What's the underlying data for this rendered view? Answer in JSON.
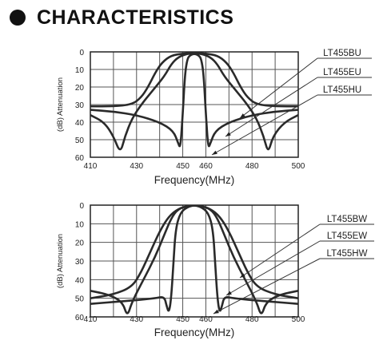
{
  "header": {
    "title": "CHARACTERISTICS"
  },
  "chart_data": [
    {
      "type": "line",
      "xlabel": "Frequency(MHz)",
      "ylabel": "(dB) Attenuation",
      "xlim": [
        410,
        500
      ],
      "ylim": [
        0,
        60
      ],
      "y_inverted": true,
      "grid": true,
      "x_ticks": [
        "410",
        "430",
        "450",
        "460",
        "480",
        "500"
      ],
      "x_tick_values": [
        410,
        430,
        450,
        460,
        480,
        500
      ],
      "y_ticks": [
        "0",
        "10",
        "20",
        "30",
        "40",
        "50",
        "60"
      ],
      "series": [
        {
          "name": "LT455BU",
          "points": [
            [
              410,
              31
            ],
            [
              420,
              31
            ],
            [
              428,
              30
            ],
            [
              432,
              26
            ],
            [
              435,
              20
            ],
            [
              438,
              12
            ],
            [
              441,
              6
            ],
            [
              445,
              2
            ],
            [
              450,
              1
            ],
            [
              455,
              0.5
            ],
            [
              460,
              1
            ],
            [
              465,
              2
            ],
            [
              469,
              6
            ],
            [
              472,
              12
            ],
            [
              475,
              20
            ],
            [
              478,
              26
            ],
            [
              482,
              30
            ],
            [
              490,
              31
            ],
            [
              500,
              31
            ]
          ]
        },
        {
          "name": "LT455EU",
          "points": [
            [
              410,
              36
            ],
            [
              416,
              40
            ],
            [
              420,
              48
            ],
            [
              423,
              58
            ],
            [
              425,
              48
            ],
            [
              428,
              38
            ],
            [
              432,
              30
            ],
            [
              437,
              22
            ],
            [
              442,
              14
            ],
            [
              445,
              7
            ],
            [
              448,
              3
            ],
            [
              452,
              1
            ],
            [
              455,
              1
            ],
            [
              458,
              1
            ],
            [
              462,
              3
            ],
            [
              465,
              7
            ],
            [
              468,
              14
            ],
            [
              473,
              22
            ],
            [
              478,
              30
            ],
            [
              482,
              38
            ],
            [
              485,
              48
            ],
            [
              487,
              58
            ],
            [
              489,
              48
            ],
            [
              494,
              40
            ],
            [
              500,
              36
            ]
          ]
        },
        {
          "name": "LT455HU",
          "points": [
            [
              410,
              33
            ],
            [
              420,
              34
            ],
            [
              430,
              36
            ],
            [
              440,
              40
            ],
            [
              446,
              45
            ],
            [
              448,
              52
            ],
            [
              449,
              55
            ],
            [
              450,
              35
            ],
            [
              451,
              12
            ],
            [
              452,
              4
            ],
            [
              453,
              2
            ],
            [
              455,
              1
            ],
            [
              457,
              2
            ],
            [
              458,
              4
            ],
            [
              459,
              12
            ],
            [
              460,
              35
            ],
            [
              461,
              55
            ],
            [
              462,
              52
            ],
            [
              464,
              45
            ],
            [
              470,
              40
            ],
            [
              480,
              36
            ],
            [
              490,
              34
            ],
            [
              500,
              33
            ]
          ]
        }
      ],
      "legend_labels": [
        "LT455BU",
        "LT455EU",
        "LT455HU"
      ]
    },
    {
      "type": "line",
      "xlabel": "Frequency(MHz)",
      "ylabel": "(dB) Attenuation",
      "xlim": [
        410,
        500
      ],
      "ylim": [
        0,
        60
      ],
      "y_inverted": true,
      "grid": true,
      "x_ticks": [
        "410",
        "430",
        "450",
        "460",
        "480",
        "500"
      ],
      "x_tick_values": [
        410,
        430,
        450,
        460,
        480,
        500
      ],
      "y_ticks": [
        "0",
        "10",
        "20",
        "30",
        "40",
        "50",
        "60"
      ],
      "y_ticks_visible": [
        "0",
        "10",
        "20",
        "30",
        "40",
        "50",
        "60"
      ],
      "series": [
        {
          "name": "LT455BW",
          "points": [
            [
              410,
              50
            ],
            [
              420,
              48
            ],
            [
              428,
              44
            ],
            [
              432,
              36
            ],
            [
              436,
              25
            ],
            [
              440,
              14
            ],
            [
              444,
              6
            ],
            [
              448,
              2
            ],
            [
              452,
              0.5
            ],
            [
              455,
              0
            ],
            [
              458,
              0.5
            ],
            [
              462,
              2
            ],
            [
              466,
              6
            ],
            [
              470,
              14
            ],
            [
              474,
              25
            ],
            [
              478,
              36
            ],
            [
              482,
              44
            ],
            [
              490,
              48
            ],
            [
              500,
              50
            ]
          ]
        },
        {
          "name": "LT455EW",
          "points": [
            [
              410,
              46
            ],
            [
              418,
              48
            ],
            [
              424,
              52
            ],
            [
              426,
              60
            ],
            [
              428,
              52
            ],
            [
              433,
              40
            ],
            [
              438,
              28
            ],
            [
              442,
              16
            ],
            [
              445,
              7
            ],
            [
              448,
              2
            ],
            [
              452,
              0.5
            ],
            [
              455,
              0
            ],
            [
              458,
              0.5
            ],
            [
              462,
              2
            ],
            [
              465,
              7
            ],
            [
              468,
              16
            ],
            [
              472,
              28
            ],
            [
              477,
              40
            ],
            [
              482,
              52
            ],
            [
              484,
              60
            ],
            [
              486,
              52
            ],
            [
              492,
              48
            ],
            [
              500,
              46
            ]
          ]
        },
        {
          "name": "LT455HW",
          "points": [
            [
              410,
              53
            ],
            [
              420,
              52
            ],
            [
              430,
              51
            ],
            [
              438,
              50
            ],
            [
              442,
              49
            ],
            [
              443,
              54
            ],
            [
              444,
              58
            ],
            [
              445,
              50
            ],
            [
              446,
              30
            ],
            [
              447,
              12
            ],
            [
              449,
              4
            ],
            [
              452,
              1
            ],
            [
              455,
              0
            ],
            [
              458,
              1
            ],
            [
              461,
              4
            ],
            [
              463,
              12
            ],
            [
              464,
              30
            ],
            [
              465,
              50
            ],
            [
              466,
              58
            ],
            [
              467,
              54
            ],
            [
              468,
              49
            ],
            [
              472,
              50
            ],
            [
              480,
              51
            ],
            [
              490,
              52
            ],
            [
              500,
              53
            ]
          ]
        }
      ],
      "legend_labels": [
        "LT455BW",
        "LT455EW",
        "LT455HW"
      ]
    }
  ]
}
